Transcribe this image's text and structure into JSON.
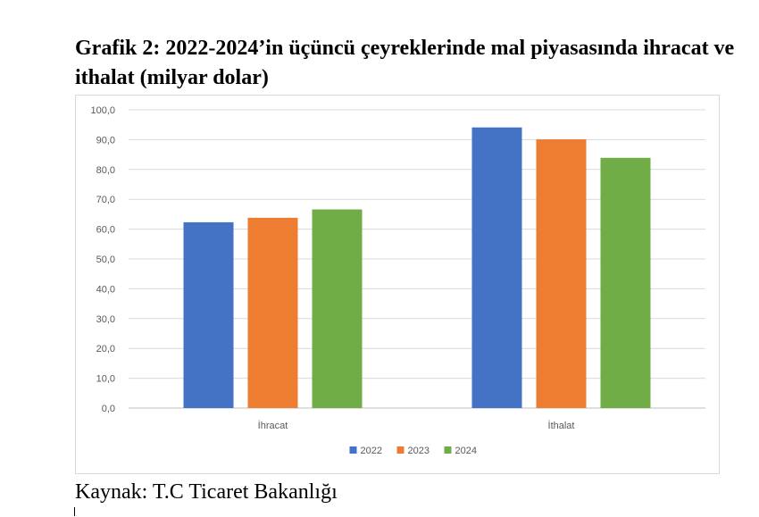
{
  "title": "Grafik 2: 2022-2024’in üçüncü çeyreklerinde mal piyasasında ihracat ve ithalat (milyar dolar)",
  "source": "Kaynak: T.C Ticaret Bakanlığı",
  "chart_data": {
    "type": "bar",
    "title": "",
    "xlabel": "",
    "ylabel": "",
    "categories": [
      "İhracat",
      "İthalat"
    ],
    "series": [
      {
        "name": "2022",
        "color": "#4472c4",
        "values": [
          62.3,
          94.1
        ]
      },
      {
        "name": "2023",
        "color": "#ed7d31",
        "values": [
          63.8,
          90.1
        ]
      },
      {
        "name": "2024",
        "color": "#70ad47",
        "values": [
          66.6,
          83.9
        ]
      }
    ],
    "ylim": [
      0,
      100
    ],
    "yticks": [
      "0,0",
      "10,0",
      "20,0",
      "30,0",
      "40,0",
      "50,0",
      "60,0",
      "70,0",
      "80,0",
      "90,0",
      "100,0"
    ],
    "grid": true,
    "legend_position": "bottom"
  }
}
